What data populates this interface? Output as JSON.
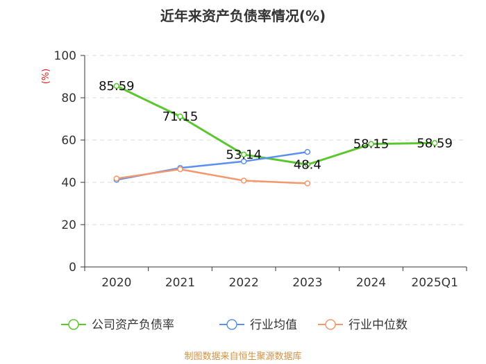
{
  "chart_data": {
    "type": "line",
    "title": "近年来资产负债率情况(%)",
    "ylabel": "(%)",
    "categories": [
      "2020",
      "2021",
      "2022",
      "2023",
      "2024",
      "2025Q1"
    ],
    "ylim": [
      0,
      100
    ],
    "yticks": [
      0,
      20,
      40,
      60,
      80,
      100
    ],
    "grid": true,
    "legend_position": "bottom",
    "series": [
      {
        "name": "公司资产负债率",
        "color": "#5ac72e",
        "values": [
          85.59,
          71.15,
          53.14,
          48.4,
          58.15,
          58.59
        ],
        "labels": [
          "85.59",
          "71.15",
          "53.14",
          "48.4",
          "58.15",
          "58.59"
        ]
      },
      {
        "name": "行业均值",
        "color": "#5b8ff0",
        "values": [
          41.2,
          46.8,
          49.9,
          54.4,
          null,
          null
        ]
      },
      {
        "name": "行业中位数",
        "color": "#f4976a",
        "values": [
          41.8,
          46.2,
          40.8,
          39.5,
          null,
          null
        ]
      }
    ]
  },
  "source": "制图数据来自恒生聚源数据库"
}
